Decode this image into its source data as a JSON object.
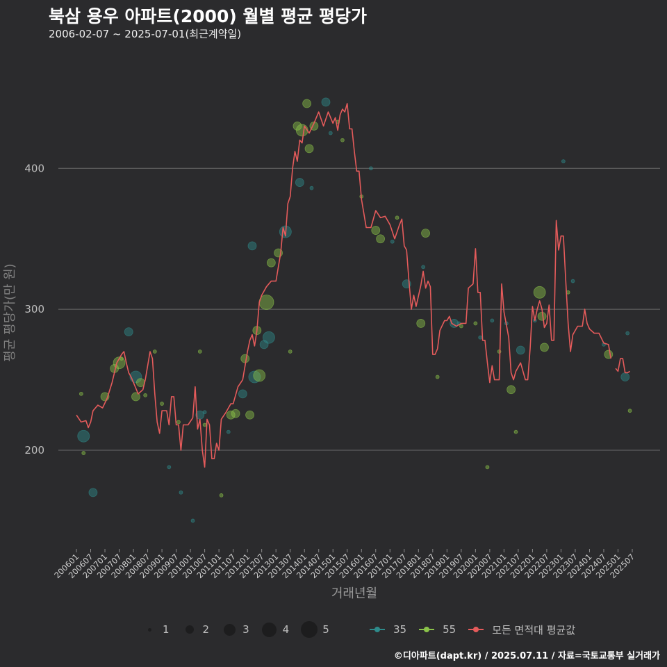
{
  "chart_data": {
    "type": "line+scatter",
    "title": "북삼 용우 아파트(2000) 월별 평균 평당가",
    "subtitle": "2006-02-07 ~ 2025-07-01(최근계약일)",
    "xlabel": "거래년월",
    "ylabel": "평균 평당가(만 원)",
    "ylim": [
      130,
      480
    ],
    "yticks": [
      200,
      300,
      400
    ],
    "xrange": [
      "2006-01",
      "2025-07"
    ],
    "xtick_labels": [
      "200601",
      "200607",
      "200701",
      "200707",
      "200801",
      "200807",
      "200901",
      "200907",
      "201001",
      "201007",
      "201101",
      "201107",
      "201201",
      "201207",
      "201301",
      "201307",
      "201401",
      "201407",
      "201501",
      "201507",
      "201601",
      "201607",
      "201701",
      "201707",
      "201801",
      "201807",
      "201901",
      "201907",
      "202001",
      "202007",
      "202101",
      "202107",
      "202201",
      "202207",
      "202301",
      "202307",
      "202401",
      "202407",
      "202501",
      "202507"
    ],
    "colors": {
      "s35": "#2e8b8b",
      "s55": "#8bc34a",
      "avg": "#e55b5b",
      "grid": "#6a6a6a",
      "background": "#2b2b2d"
    },
    "avg_series": {
      "name": "모든 면적대 평균값",
      "points": [
        [
          "2006-01",
          225
        ],
        [
          "2006-03",
          220
        ],
        [
          "2006-05",
          221
        ],
        [
          "2006-06",
          216
        ],
        [
          "2006-07",
          220
        ],
        [
          "2006-08",
          228
        ],
        [
          "2006-10",
          232
        ],
        [
          "2006-12",
          230
        ],
        [
          "2007-02",
          237
        ],
        [
          "2007-04",
          248
        ],
        [
          "2007-06",
          262
        ],
        [
          "2007-08",
          268
        ],
        [
          "2007-09",
          270
        ],
        [
          "2007-10",
          262
        ],
        [
          "2007-11",
          255
        ],
        [
          "2007-12",
          252
        ],
        [
          "2008-01",
          248
        ],
        [
          "2008-03",
          240
        ],
        [
          "2008-05",
          243
        ],
        [
          "2008-06",
          250
        ],
        [
          "2008-08",
          270
        ],
        [
          "2008-09",
          265
        ],
        [
          "2008-10",
          240
        ],
        [
          "2008-11",
          220
        ],
        [
          "2008-12",
          212
        ],
        [
          "2009-01",
          228
        ],
        [
          "2009-03",
          228
        ],
        [
          "2009-04",
          218
        ],
        [
          "2009-05",
          238
        ],
        [
          "2009-06",
          238
        ],
        [
          "2009-07",
          218
        ],
        [
          "2009-08",
          218
        ],
        [
          "2009-09",
          200
        ],
        [
          "2009-10",
          218
        ],
        [
          "2009-12",
          218
        ],
        [
          "2010-02",
          223
        ],
        [
          "2010-03",
          245
        ],
        [
          "2010-04",
          215
        ],
        [
          "2010-05",
          222
        ],
        [
          "2010-06",
          200
        ],
        [
          "2010-07",
          188
        ],
        [
          "2010-08",
          222
        ],
        [
          "2010-09",
          218
        ],
        [
          "2010-10",
          194
        ],
        [
          "2010-11",
          194
        ],
        [
          "2010-12",
          205
        ],
        [
          "2011-01",
          200
        ],
        [
          "2011-02",
          222
        ],
        [
          "2011-04",
          227
        ],
        [
          "2011-06",
          233
        ],
        [
          "2011-07",
          233
        ],
        [
          "2011-09",
          245
        ],
        [
          "2011-11",
          250
        ],
        [
          "2012-01",
          270
        ],
        [
          "2012-02",
          278
        ],
        [
          "2012-03",
          282
        ],
        [
          "2012-04",
          274
        ],
        [
          "2012-05",
          285
        ],
        [
          "2012-06",
          305
        ],
        [
          "2012-07",
          310
        ],
        [
          "2012-09",
          316
        ],
        [
          "2012-11",
          320
        ],
        [
          "2013-01",
          320
        ],
        [
          "2013-03",
          340
        ],
        [
          "2013-04",
          358
        ],
        [
          "2013-05",
          352
        ],
        [
          "2013-06",
          375
        ],
        [
          "2013-07",
          380
        ],
        [
          "2013-08",
          400
        ],
        [
          "2013-09",
          412
        ],
        [
          "2013-10",
          405
        ],
        [
          "2013-11",
          420
        ],
        [
          "2013-12",
          418
        ],
        [
          "2014-01",
          430
        ],
        [
          "2014-03",
          425
        ],
        [
          "2014-05",
          432
        ],
        [
          "2014-07",
          440
        ],
        [
          "2014-09",
          430
        ],
        [
          "2014-11",
          440
        ],
        [
          "2015-01",
          432
        ],
        [
          "2015-02",
          436
        ],
        [
          "2015-03",
          427
        ],
        [
          "2015-04",
          438
        ],
        [
          "2015-05",
          442
        ],
        [
          "2015-06",
          440
        ],
        [
          "2015-07",
          446
        ],
        [
          "2015-08",
          428
        ],
        [
          "2015-09",
          428
        ],
        [
          "2015-10",
          412
        ],
        [
          "2015-11",
          398
        ],
        [
          "2015-12",
          398
        ],
        [
          "2016-01",
          378
        ],
        [
          "2016-03",
          358
        ],
        [
          "2016-05",
          358
        ],
        [
          "2016-07",
          370
        ],
        [
          "2016-09",
          365
        ],
        [
          "2016-11",
          366
        ],
        [
          "2017-01",
          360
        ],
        [
          "2017-03",
          350
        ],
        [
          "2017-05",
          360
        ],
        [
          "2017-06",
          364
        ],
        [
          "2017-07",
          345
        ],
        [
          "2017-08",
          342
        ],
        [
          "2017-09",
          320
        ],
        [
          "2017-10",
          300
        ],
        [
          "2017-11",
          310
        ],
        [
          "2017-12",
          302
        ],
        [
          "2018-02",
          317
        ],
        [
          "2018-03",
          327
        ],
        [
          "2018-04",
          315
        ],
        [
          "2018-05",
          320
        ],
        [
          "2018-06",
          316
        ],
        [
          "2018-07",
          268
        ],
        [
          "2018-08",
          268
        ],
        [
          "2018-09",
          272
        ],
        [
          "2018-10",
          285
        ],
        [
          "2018-12",
          292
        ],
        [
          "2019-01",
          292
        ],
        [
          "2019-02",
          295
        ],
        [
          "2019-03",
          290
        ],
        [
          "2019-05",
          288
        ],
        [
          "2019-07",
          290
        ],
        [
          "2019-09",
          290
        ],
        [
          "2019-10",
          315
        ],
        [
          "2019-12",
          318
        ],
        [
          "2020-01",
          343
        ],
        [
          "2020-02",
          312
        ],
        [
          "2020-03",
          312
        ],
        [
          "2020-04",
          278
        ],
        [
          "2020-05",
          278
        ],
        [
          "2020-06",
          262
        ],
        [
          "2020-07",
          248
        ],
        [
          "2020-08",
          260
        ],
        [
          "2020-09",
          250
        ],
        [
          "2020-11",
          250
        ],
        [
          "2020-12",
          318
        ],
        [
          "2021-01",
          298
        ],
        [
          "2021-03",
          280
        ],
        [
          "2021-04",
          255
        ],
        [
          "2021-05",
          250
        ],
        [
          "2021-06",
          256
        ],
        [
          "2021-08",
          262
        ],
        [
          "2021-09",
          256
        ],
        [
          "2021-10",
          250
        ],
        [
          "2021-11",
          250
        ],
        [
          "2021-12",
          272
        ],
        [
          "2022-01",
          302
        ],
        [
          "2022-02",
          292
        ],
        [
          "2022-03",
          300
        ],
        [
          "2022-04",
          306
        ],
        [
          "2022-05",
          300
        ],
        [
          "2022-06",
          287
        ],
        [
          "2022-07",
          290
        ],
        [
          "2022-08",
          303
        ],
        [
          "2022-09",
          278
        ],
        [
          "2022-10",
          278
        ],
        [
          "2022-11",
          363
        ],
        [
          "2022-12",
          342
        ],
        [
          "2023-01",
          352
        ],
        [
          "2023-02",
          352
        ],
        [
          "2023-03",
          320
        ],
        [
          "2023-04",
          290
        ],
        [
          "2023-05",
          270
        ],
        [
          "2023-06",
          282
        ],
        [
          "2023-08",
          288
        ],
        [
          "2023-10",
          288
        ],
        [
          "2023-11",
          300
        ],
        [
          "2023-12",
          290
        ],
        [
          "2024-01",
          286
        ],
        [
          "2024-03",
          283
        ],
        [
          "2024-05",
          283
        ],
        [
          "2024-07",
          276
        ],
        [
          "2024-09",
          275
        ],
        [
          "2024-10",
          265
        ],
        [
          null,
          null
        ],
        [
          "2024-12",
          258
        ],
        [
          "2025-01",
          256
        ],
        [
          "2025-02",
          265
        ],
        [
          "2025-03",
          265
        ],
        [
          "2025-04",
          255
        ],
        [
          "2025-05",
          255
        ],
        [
          "2025-06",
          256
        ]
      ]
    },
    "scatter_series": [
      {
        "name": "35",
        "points": [
          [
            "2006-04",
            210,
            3
          ],
          [
            "2006-08",
            170,
            2
          ],
          [
            "2007-11",
            284,
            2
          ],
          [
            "2008-02",
            252,
            3
          ],
          [
            "2009-04",
            188,
            1
          ],
          [
            "2009-09",
            170,
            1
          ],
          [
            "2010-02",
            150,
            1
          ],
          [
            "2010-05",
            225,
            2
          ],
          [
            "2010-07",
            227,
            1
          ],
          [
            "2011-05",
            213,
            1
          ],
          [
            "2011-11",
            240,
            2
          ],
          [
            "2012-03",
            345,
            2
          ],
          [
            "2012-04",
            252,
            3
          ],
          [
            "2012-08",
            275,
            2
          ],
          [
            "2012-10",
            280,
            3
          ],
          [
            "2013-05",
            355,
            3
          ],
          [
            "2013-11",
            390,
            2
          ],
          [
            "2014-04",
            386,
            1
          ],
          [
            "2014-10",
            447,
            2
          ],
          [
            "2014-12",
            425,
            1
          ],
          [
            "2016-05",
            400,
            1
          ],
          [
            "2017-02",
            348,
            1
          ],
          [
            "2017-08",
            318,
            2
          ],
          [
            "2018-03",
            330,
            1
          ],
          [
            "2019-04",
            290,
            2
          ],
          [
            "2019-06",
            290,
            1
          ],
          [
            "2020-03",
            280,
            1
          ],
          [
            "2020-08",
            292,
            1
          ],
          [
            "2021-02",
            290,
            1
          ],
          [
            "2021-08",
            271,
            2
          ],
          [
            "2022-02",
            292,
            1
          ],
          [
            "2023-02",
            405,
            1
          ],
          [
            "2023-06",
            320,
            1
          ],
          [
            "2024-07",
            275,
            1
          ],
          [
            "2025-04",
            252,
            2
          ],
          [
            "2025-05",
            283,
            1
          ]
        ]
      },
      {
        "name": "55",
        "points": [
          [
            "2006-03",
            240,
            1
          ],
          [
            "2006-04",
            198,
            1
          ],
          [
            "2007-01",
            238,
            2
          ],
          [
            "2007-05",
            258,
            2
          ],
          [
            "2007-07",
            262,
            3
          ],
          [
            "2007-08",
            265,
            1
          ],
          [
            "2008-02",
            238,
            2
          ],
          [
            "2008-04",
            248,
            2
          ],
          [
            "2008-06",
            239,
            1
          ],
          [
            "2008-10",
            270,
            1
          ],
          [
            "2009-01",
            233,
            1
          ],
          [
            "2009-08",
            220,
            1
          ],
          [
            "2010-05",
            270,
            1
          ],
          [
            "2010-07",
            218,
            1
          ],
          [
            "2011-02",
            168,
            1
          ],
          [
            "2011-06",
            225,
            2
          ],
          [
            "2011-08",
            226,
            2
          ],
          [
            "2011-12",
            265,
            2
          ],
          [
            "2012-02",
            225,
            2
          ],
          [
            "2012-05",
            285,
            2
          ],
          [
            "2012-06",
            253,
            3
          ],
          [
            "2012-09",
            305,
            4
          ],
          [
            "2012-11",
            333,
            2
          ],
          [
            "2013-02",
            340,
            2
          ],
          [
            "2013-07",
            270,
            1
          ],
          [
            "2013-10",
            430,
            2
          ],
          [
            "2013-12",
            427,
            3
          ],
          [
            "2014-02",
            446,
            2
          ],
          [
            "2014-03",
            414,
            2
          ],
          [
            "2014-05",
            430,
            2
          ],
          [
            "2015-03",
            433,
            1
          ],
          [
            "2015-05",
            420,
            1
          ],
          [
            "2016-01",
            380,
            1
          ],
          [
            "2016-07",
            356,
            2
          ],
          [
            "2016-09",
            350,
            2
          ],
          [
            "2017-04",
            365,
            1
          ],
          [
            "2018-02",
            290,
            2
          ],
          [
            "2018-04",
            354,
            2
          ],
          [
            "2018-09",
            252,
            1
          ],
          [
            "2019-07",
            288,
            1
          ],
          [
            "2020-01",
            290,
            1
          ],
          [
            "2020-06",
            188,
            1
          ],
          [
            "2020-11",
            270,
            1
          ],
          [
            "2021-04",
            243,
            2
          ],
          [
            "2021-06",
            213,
            1
          ],
          [
            "2022-04",
            312,
            3
          ],
          [
            "2022-05",
            295,
            2
          ],
          [
            "2022-06",
            273,
            2
          ],
          [
            "2023-04",
            312,
            1
          ],
          [
            "2024-09",
            268,
            2
          ],
          [
            "2025-06",
            228,
            1
          ]
        ]
      }
    ],
    "size_legend": {
      "values": [
        "1",
        "2",
        "3",
        "4",
        "5"
      ]
    },
    "legend_series": [
      "35",
      "55",
      "모든 면적대 평균값"
    ]
  },
  "footer": "©디아파트(dapt.kr) / 2025.07.11 / 자료=국토교통부 실거래가"
}
